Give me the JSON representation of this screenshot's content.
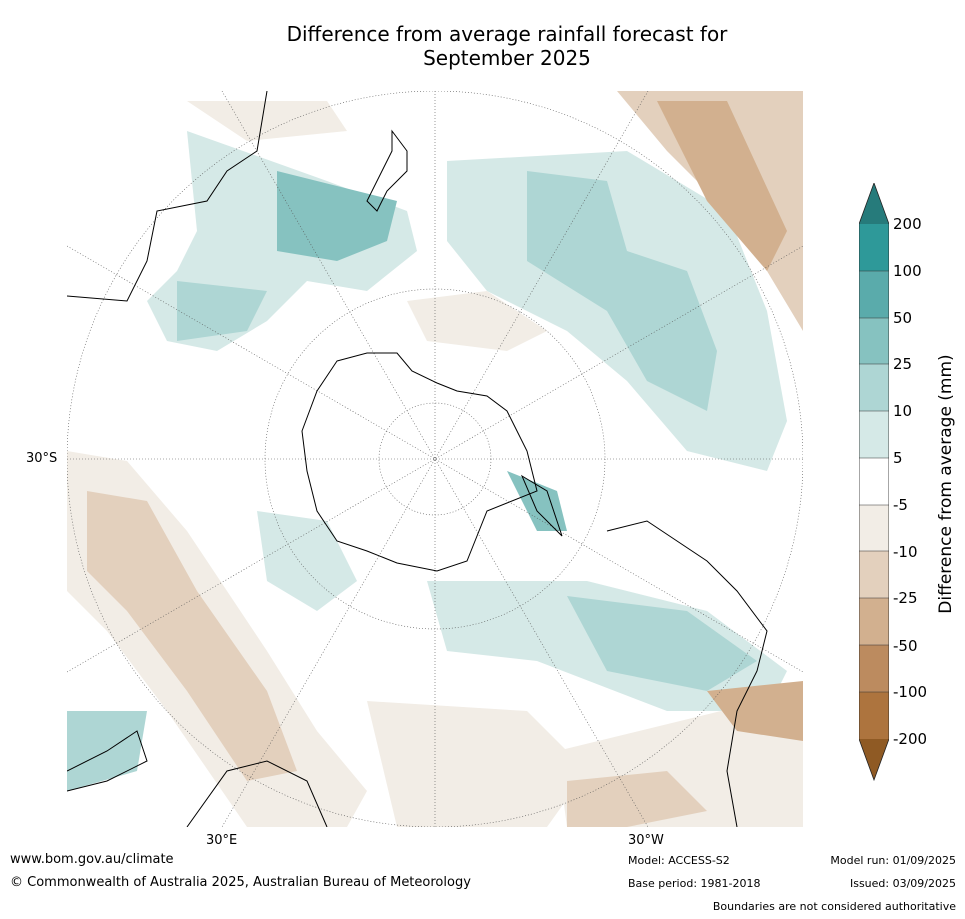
{
  "title_line1": "Difference from average rainfall forecast for",
  "title_line2": "September 2025",
  "map": {
    "projection": "south-polar-stereographic",
    "lat_label": "30°S",
    "lon_label_east": "30°E",
    "lon_label_west": "30°W"
  },
  "colorbar": {
    "title": "Difference from average (mm)",
    "labels": [
      "200",
      "100",
      "50",
      "25",
      "10",
      "5",
      "-5",
      "-10",
      "-25",
      "-50",
      "-100",
      "-200"
    ],
    "colors": {
      "gt200": "#267b7b",
      "100_200": "#2e9999",
      "50_100": "#5aabab",
      "25_50": "#86c2c0",
      "10_25": "#aed6d4",
      "5_10": "#d5e9e7",
      "neutral": "#ffffff",
      "m10_m5": "#f2ede6",
      "m25_m10": "#e3d0bd",
      "m50_m25": "#d2b08f",
      "m100_m50": "#bc8b5f",
      "m200_m100": "#ad743e",
      "lt_m200": "#8f5a24"
    }
  },
  "footer": {
    "website": "www.bom.gov.au/climate",
    "copyright": "© Commonwealth of Australia 2025, Australian Bureau of Meteorology",
    "model": "Model: ACCESS-S2",
    "base_period": "Base period: 1981-2018",
    "model_run": "Model run: 01/09/2025",
    "issued": "Issued: 03/09/2025",
    "disclaimer": "Boundaries are not considered authoritative"
  }
}
